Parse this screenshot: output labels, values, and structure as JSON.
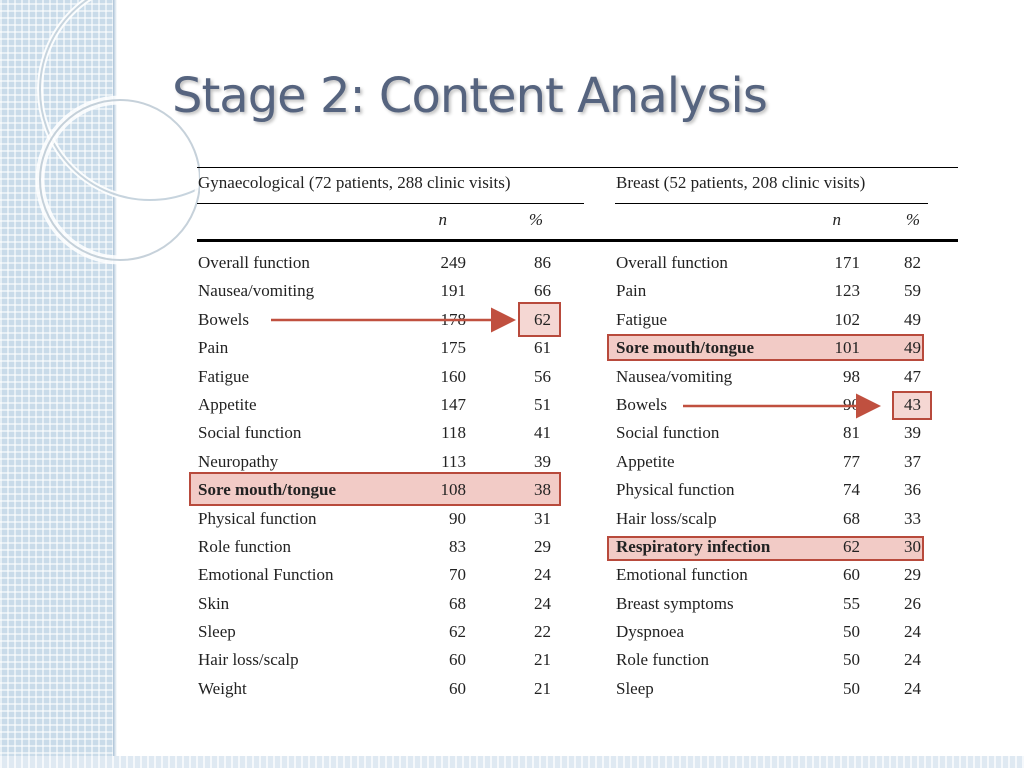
{
  "slide": {
    "title": "Stage 2: Content Analysis",
    "accent_color": "#56647f",
    "highlight_color": "#b84a3c"
  },
  "tables": {
    "left": {
      "caption": "Gynaecological (72 patients, 288 clinic visits)",
      "col_n": "n",
      "col_pct": "%",
      "rows": [
        {
          "label": "Overall function",
          "n": "249",
          "pct": "86"
        },
        {
          "label": "Nausea/vomiting",
          "n": "191",
          "pct": "66"
        },
        {
          "label": "Bowels",
          "n": "178",
          "pct": "62"
        },
        {
          "label": "Pain",
          "n": "175",
          "pct": "61"
        },
        {
          "label": "Fatigue",
          "n": "160",
          "pct": "56"
        },
        {
          "label": "Appetite",
          "n": "147",
          "pct": "51"
        },
        {
          "label": "Social function",
          "n": "118",
          "pct": "41"
        },
        {
          "label": "Neuropathy",
          "n": "113",
          "pct": "39"
        },
        {
          "label": "Sore mouth/tongue",
          "n": "108",
          "pct": "38",
          "bold": true
        },
        {
          "label": "Physical function",
          "n": "90",
          "pct": "31"
        },
        {
          "label": "Role function",
          "n": "83",
          "pct": "29"
        },
        {
          "label": "Emotional Function",
          "n": "70",
          "pct": "24"
        },
        {
          "label": "Skin",
          "n": "68",
          "pct": "24"
        },
        {
          "label": "Sleep",
          "n": "62",
          "pct": "22"
        },
        {
          "label": "Hair loss/scalp",
          "n": "60",
          "pct": "21"
        },
        {
          "label": "Weight",
          "n": "60",
          "pct": "21"
        }
      ]
    },
    "right": {
      "caption": "Breast (52 patients, 208 clinic visits)",
      "col_n": "n",
      "col_pct": "%",
      "rows": [
        {
          "label": "Overall function",
          "n": "171",
          "pct": "82"
        },
        {
          "label": "Pain",
          "n": "123",
          "pct": "59"
        },
        {
          "label": "Fatigue",
          "n": "102",
          "pct": "49"
        },
        {
          "label": "Sore mouth/tongue",
          "n": "101",
          "pct": "49",
          "bold": true
        },
        {
          "label": "Nausea/vomiting",
          "n": "98",
          "pct": "47"
        },
        {
          "label": "Bowels",
          "n": "90",
          "pct": "43"
        },
        {
          "label": "Social function",
          "n": "81",
          "pct": "39"
        },
        {
          "label": "Appetite",
          "n": "77",
          "pct": "37"
        },
        {
          "label": "Physical function",
          "n": "74",
          "pct": "36"
        },
        {
          "label": "Hair loss/scalp",
          "n": "68",
          "pct": "33"
        },
        {
          "label": "Respiratory infection",
          "n": "62",
          "pct": "30",
          "bold": true
        },
        {
          "label": "Emotional function",
          "n": "60",
          "pct": "29"
        },
        {
          "label": "Breast symptoms",
          "n": "55",
          "pct": "26"
        },
        {
          "label": "Dyspnoea",
          "n": "50",
          "pct": "24"
        },
        {
          "label": "Role function",
          "n": "50",
          "pct": "24"
        },
        {
          "label": "Sleep",
          "n": "50",
          "pct": "24"
        }
      ]
    }
  }
}
